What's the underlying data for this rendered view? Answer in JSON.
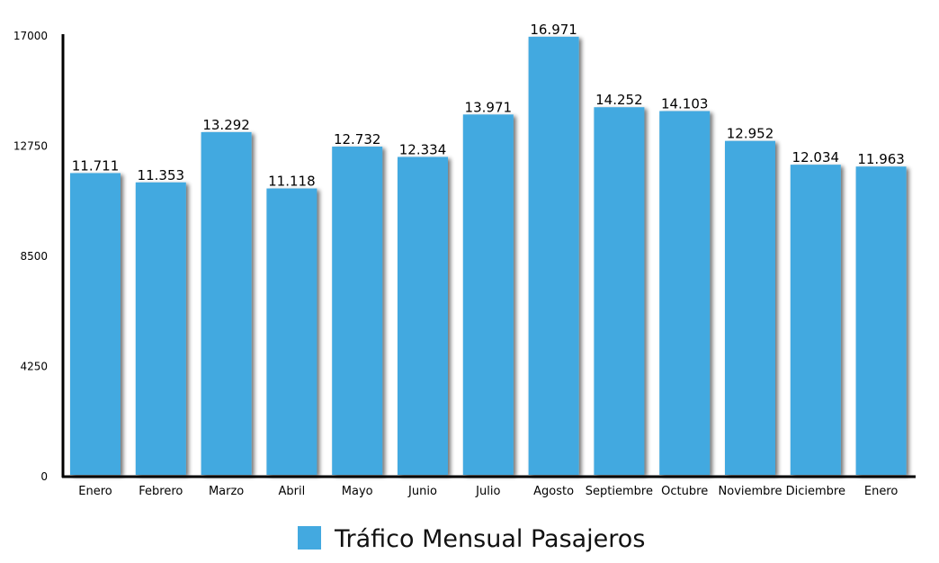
{
  "chart_data": {
    "type": "bar",
    "categories": [
      "Enero",
      "Febrero",
      "Marzo",
      "Abril",
      "Mayo",
      "Junio",
      "Julio",
      "Agosto",
      "Septiembre",
      "Octubre",
      "Noviembre",
      "Diciembre",
      "Enero"
    ],
    "values": [
      11711,
      11353,
      13292,
      11118,
      12732,
      12334,
      13971,
      16971,
      14252,
      14103,
      12952,
      12034,
      11963
    ],
    "data_labels": [
      "11.711",
      "11.353",
      "13.292",
      "11.118",
      "12.732",
      "12.334",
      "13.971",
      "16.971",
      "14.252",
      "14.103",
      "12.952",
      "12.034",
      "11.963"
    ],
    "y_ticks": [
      "0",
      "4250",
      "8500",
      "12750",
      "17000"
    ],
    "ylim": [
      0,
      17000
    ],
    "legend": {
      "label": "Tráfico Mensual  Pasajeros",
      "position": "bottom-center"
    },
    "grid": false,
    "bar_color": "#43a9e0",
    "title": "",
    "xlabel": "",
    "ylabel": ""
  }
}
